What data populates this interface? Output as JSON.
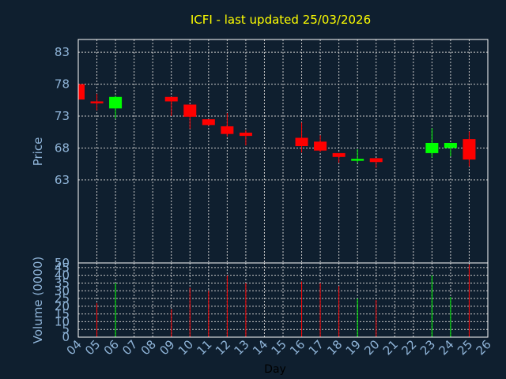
{
  "chart_data": {
    "type": "candlestick",
    "title": "ICFI - last updated 25/03/2026",
    "xlabel": "Day",
    "price_ylabel": "Price",
    "volume_ylabel": "Volume (0000)",
    "x_ticks": [
      "04",
      "05",
      "06",
      "07",
      "08",
      "09",
      "10",
      "11",
      "12",
      "13",
      "14",
      "15",
      "16",
      "17",
      "18",
      "19",
      "20",
      "21",
      "22",
      "23",
      "24",
      "25",
      "26"
    ],
    "price_ylim": [
      50,
      85
    ],
    "price_yticks": [
      "83",
      "78",
      "73",
      "68",
      "63",
      "50"
    ],
    "volume_ylim": [
      0,
      48
    ],
    "volume_yticks": [
      "45",
      "40",
      "35",
      "30",
      "25",
      "20",
      "15",
      "10",
      "5",
      "0"
    ],
    "up_color": "#00ff00",
    "down_color": "#ff0000",
    "candles": [
      {
        "day": "04",
        "open": 78.0,
        "high": 78.2,
        "low": 75.5,
        "close": 75.6
      },
      {
        "day": "05",
        "open": 75.3,
        "high": 76.5,
        "low": 73.9,
        "close": 75.0
      },
      {
        "day": "06",
        "open": 74.2,
        "high": 76.2,
        "low": 72.6,
        "close": 76.0
      },
      {
        "day": "09",
        "open": 76.0,
        "high": 76.0,
        "low": 73.0,
        "close": 75.3
      },
      {
        "day": "10",
        "open": 74.8,
        "high": 74.8,
        "low": 71.0,
        "close": 72.9
      },
      {
        "day": "11",
        "open": 72.5,
        "high": 72.5,
        "low": 71.5,
        "close": 71.6
      },
      {
        "day": "12",
        "open": 71.4,
        "high": 73.5,
        "low": 69.8,
        "close": 70.2
      },
      {
        "day": "13",
        "open": 70.4,
        "high": 70.8,
        "low": 68.4,
        "close": 69.9
      },
      {
        "day": "16",
        "open": 69.6,
        "high": 72.0,
        "low": 67.3,
        "close": 68.3
      },
      {
        "day": "17",
        "open": 69.0,
        "high": 70.0,
        "low": 67.4,
        "close": 67.6
      },
      {
        "day": "18",
        "open": 67.2,
        "high": 67.2,
        "low": 65.7,
        "close": 66.6
      },
      {
        "day": "19",
        "open": 66.0,
        "high": 67.8,
        "low": 65.7,
        "close": 66.3
      },
      {
        "day": "20",
        "open": 66.4,
        "high": 66.4,
        "low": 64.9,
        "close": 65.8
      },
      {
        "day": "23",
        "open": 67.2,
        "high": 71.1,
        "low": 66.5,
        "close": 68.8
      },
      {
        "day": "24",
        "open": 68.0,
        "high": 68.8,
        "low": 66.7,
        "close": 68.8
      },
      {
        "day": "25",
        "open": 69.4,
        "high": 70.6,
        "low": 65.1,
        "close": 66.2
      }
    ],
    "volume": [
      {
        "day": "05",
        "value": 22
      },
      {
        "day": "06",
        "value": 35
      },
      {
        "day": "09",
        "value": 18
      },
      {
        "day": "10",
        "value": 32
      },
      {
        "day": "11",
        "value": 30
      },
      {
        "day": "12",
        "value": 40
      },
      {
        "day": "13",
        "value": 35
      },
      {
        "day": "16",
        "value": 36
      },
      {
        "day": "17",
        "value": 35
      },
      {
        "day": "18",
        "value": 33
      },
      {
        "day": "19",
        "value": 25
      },
      {
        "day": "20",
        "value": 24
      },
      {
        "day": "23",
        "value": 40
      },
      {
        "day": "24",
        "value": 26
      },
      {
        "day": "25",
        "value": 47
      }
    ]
  }
}
